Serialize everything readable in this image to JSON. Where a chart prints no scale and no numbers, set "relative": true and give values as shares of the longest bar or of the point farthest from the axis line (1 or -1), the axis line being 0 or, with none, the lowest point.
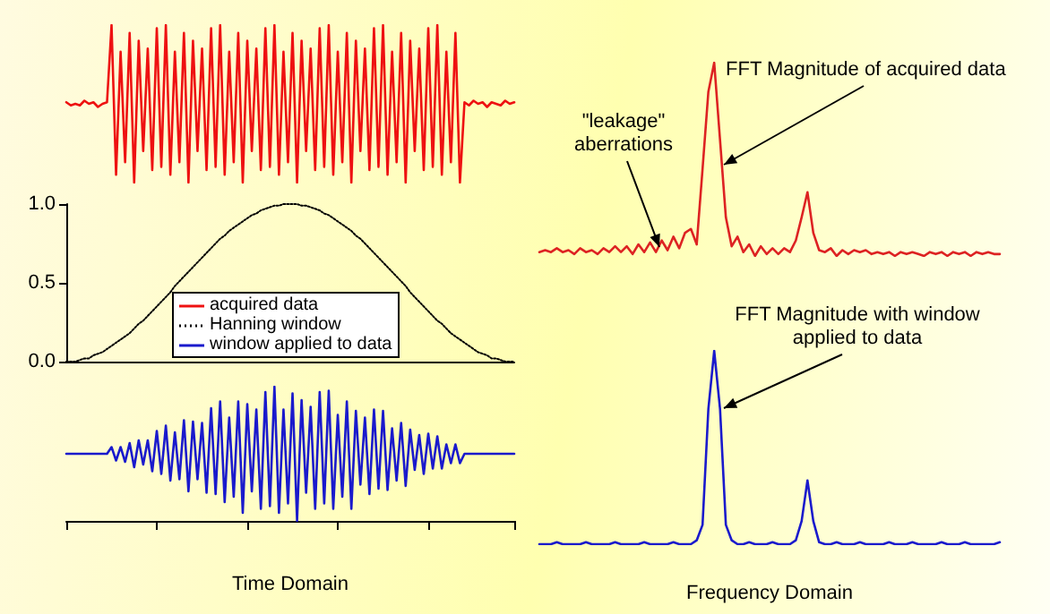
{
  "chart_data": [
    {
      "type": "line",
      "marker": "none",
      "relative": true,
      "tick_labels": false,
      "categories": [
        null,
        null,
        null,
        null,
        null,
        null,
        null,
        null,
        null,
        null,
        null,
        null,
        null,
        null,
        null,
        null,
        null,
        null,
        null,
        null,
        null,
        null,
        null,
        null,
        null,
        null,
        null,
        null,
        null,
        null,
        null,
        null,
        null,
        null,
        null,
        null,
        null,
        null,
        null,
        null,
        null,
        null,
        null,
        null,
        null,
        null,
        null,
        null,
        null,
        null,
        null,
        null,
        null,
        null,
        null,
        null,
        null,
        null,
        null,
        null,
        null,
        null,
        null,
        null,
        null,
        null,
        null,
        null,
        null,
        null,
        null,
        null,
        null,
        null,
        null,
        null,
        null,
        null,
        null,
        null,
        null,
        null,
        null,
        null,
        null,
        null,
        null,
        null,
        null,
        null,
        null,
        null,
        null,
        null,
        null,
        null,
        null,
        null,
        null,
        null
      ],
      "series": [
        {
          "name": "acquired data",
          "color": "#ee1111",
          "values": [
            0.51,
            0.49,
            0.5,
            0.49,
            0.52,
            0.5,
            0.51,
            0.48,
            0.5,
            0.51,
            1,
            0.05,
            0.83,
            0.13,
            0.95,
            0,
            0.9,
            0.2,
            0.85,
            0.08,
            0.98,
            0.1,
            1,
            0.05,
            0.83,
            0.13,
            0.95,
            0,
            0.9,
            0.2,
            0.85,
            0.08,
            0.98,
            0.1,
            1,
            0.05,
            0.83,
            0.13,
            0.95,
            0,
            0.9,
            0.2,
            0.85,
            0.08,
            0.98,
            0.1,
            1,
            0.05,
            0.83,
            0.13,
            0.95,
            0,
            0.9,
            0.2,
            0.85,
            0.08,
            0.98,
            0.1,
            1,
            0.05,
            0.83,
            0.13,
            0.95,
            0,
            0.9,
            0.2,
            0.85,
            0.08,
            0.98,
            0.1,
            1,
            0.05,
            0.83,
            0.13,
            0.95,
            0,
            0.9,
            0.2,
            0.85,
            0.08,
            0.98,
            0.1,
            1,
            0.05,
            0.83,
            0.13,
            0.95,
            0,
            0.51,
            0.49,
            0.52,
            0.5,
            0.51,
            0.48,
            0.51,
            0.5,
            0.49,
            0.52,
            0.5,
            0.51
          ]
        }
      ]
    },
    {
      "type": "line",
      "marker": "none",
      "tick_labels": "y",
      "legend": "bottom",
      "ylim": [
        0,
        1
      ],
      "yticks": [
        {
          "value": 0,
          "label": "0.0"
        },
        {
          "value": 0.5,
          "label": "0.5"
        },
        {
          "value": 1,
          "label": "1.0"
        }
      ],
      "categories": [
        null,
        null,
        null,
        null,
        null,
        null,
        null,
        null,
        null,
        null,
        null,
        null,
        null,
        null,
        null,
        null,
        null,
        null,
        null,
        null,
        null,
        null,
        null,
        null,
        null,
        null,
        null,
        null,
        null,
        null,
        null,
        null,
        null,
        null,
        null,
        null,
        null,
        null,
        null,
        null,
        null,
        null,
        null,
        null,
        null,
        null,
        null,
        null,
        null,
        null,
        null,
        null,
        null,
        null,
        null,
        null,
        null,
        null,
        null,
        null,
        null,
        null,
        null,
        null,
        null,
        null,
        null,
        null,
        null,
        null,
        null,
        null,
        null,
        null,
        null,
        null,
        null,
        null,
        null,
        null,
        null,
        null,
        null,
        null,
        null,
        null,
        null,
        null,
        null,
        null,
        null,
        null,
        null,
        null,
        null,
        null,
        null,
        null,
        null,
        null
      ],
      "series": [
        {
          "name": "Hanning window",
          "color": "#000000",
          "line_style": "dotted",
          "values": [
            0,
            0,
            0,
            0.01,
            0.02,
            0.02,
            0.04,
            0.05,
            0.06,
            0.08,
            0.1,
            0.12,
            0.14,
            0.16,
            0.18,
            0.21,
            0.24,
            0.26,
            0.29,
            0.32,
            0.35,
            0.38,
            0.41,
            0.44,
            0.48,
            0.51,
            0.54,
            0.57,
            0.6,
            0.63,
            0.66,
            0.69,
            0.72,
            0.75,
            0.78,
            0.8,
            0.83,
            0.85,
            0.87,
            0.89,
            0.91,
            0.93,
            0.94,
            0.96,
            0.97,
            0.98,
            0.99,
            0.99,
            1,
            1,
            1,
            1,
            0.99,
            0.99,
            0.98,
            0.97,
            0.96,
            0.94,
            0.93,
            0.91,
            0.89,
            0.87,
            0.85,
            0.83,
            0.8,
            0.78,
            0.75,
            0.72,
            0.69,
            0.66,
            0.63,
            0.6,
            0.57,
            0.54,
            0.51,
            0.48,
            0.44,
            0.41,
            0.38,
            0.35,
            0.32,
            0.29,
            0.26,
            0.24,
            0.21,
            0.18,
            0.16,
            0.14,
            0.12,
            0.1,
            0.08,
            0.06,
            0.05,
            0.04,
            0.02,
            0.02,
            0.01,
            0,
            0,
            0
          ]
        }
      ]
    },
    {
      "type": "line",
      "marker": "none",
      "relative": true,
      "tick_labels": false,
      "xlabel": "Time Domain",
      "categories": [
        null,
        null,
        null,
        null,
        null,
        null,
        null,
        null,
        null,
        null,
        null,
        null,
        null,
        null,
        null,
        null,
        null,
        null,
        null,
        null,
        null,
        null,
        null,
        null,
        null,
        null,
        null,
        null,
        null,
        null,
        null,
        null,
        null,
        null,
        null,
        null,
        null,
        null,
        null,
        null,
        null,
        null,
        null,
        null,
        null,
        null,
        null,
        null,
        null,
        null,
        null,
        null,
        null,
        null,
        null,
        null,
        null,
        null,
        null,
        null,
        null,
        null,
        null,
        null,
        null,
        null,
        null,
        null,
        null,
        null,
        null,
        null,
        null,
        null,
        null,
        null,
        null,
        null,
        null,
        null,
        null,
        null,
        null,
        null,
        null,
        null,
        null,
        null,
        null,
        null,
        null,
        null,
        null,
        null,
        null,
        null,
        null,
        null,
        null,
        null
      ],
      "series": [
        {
          "name": "window applied to data",
          "color": "#1a1acc",
          "values": [
            0.5,
            0.5,
            0.5,
            0.5,
            0.5,
            0.5,
            0.5,
            0.5,
            0.5,
            0.5,
            0.55,
            0.45,
            0.55,
            0.44,
            0.58,
            0.4,
            0.6,
            0.42,
            0.6,
            0.37,
            0.67,
            0.35,
            0.71,
            0.3,
            0.66,
            0.31,
            0.75,
            0.22,
            0.74,
            0.31,
            0.73,
            0.21,
            0.84,
            0.2,
            0.89,
            0.14,
            0.77,
            0.18,
            0.89,
            0.06,
            0.87,
            0.22,
            0.83,
            0.09,
            0.96,
            0.11,
            1,
            0.06,
            0.83,
            0.13,
            0.95,
            0,
            0.9,
            0.21,
            0.85,
            0.09,
            0.96,
            0.13,
            0.97,
            0.09,
            0.79,
            0.18,
            0.89,
            0.09,
            0.82,
            0.27,
            0.77,
            0.2,
            0.83,
            0.24,
            0.82,
            0.23,
            0.69,
            0.3,
            0.73,
            0.26,
            0.68,
            0.38,
            0.64,
            0.35,
            0.65,
            0.39,
            0.63,
            0.39,
            0.57,
            0.43,
            0.57,
            0.43,
            0.5,
            0.5,
            0.5,
            0.5,
            0.5,
            0.5,
            0.5,
            0.5,
            0.5,
            0.5,
            0.5,
            0.5
          ]
        }
      ]
    },
    {
      "type": "line",
      "marker": "none",
      "relative": true,
      "tick_labels": false,
      "annotations": [
        "\"leakage\" aberrations",
        "FFT Magnitude of acquired data"
      ],
      "categories": [
        null,
        null,
        null,
        null,
        null,
        null,
        null,
        null,
        null,
        null,
        null,
        null,
        null,
        null,
        null,
        null,
        null,
        null,
        null,
        null,
        null,
        null,
        null,
        null,
        null,
        null,
        null,
        null,
        null,
        null,
        null,
        null,
        null,
        null,
        null,
        null,
        null,
        null,
        null,
        null,
        null,
        null,
        null,
        null,
        null,
        null,
        null,
        null,
        null,
        null,
        null,
        null,
        null,
        null,
        null,
        null,
        null,
        null,
        null,
        null,
        null,
        null,
        null,
        null,
        null,
        null,
        null,
        null,
        null,
        null,
        null,
        null,
        null,
        null,
        null,
        null,
        null,
        null,
        null,
        null
      ],
      "series": [
        {
          "color": "#dd2222",
          "values": [
            0.02,
            0.03,
            0.02,
            0.04,
            0.02,
            0.03,
            0.01,
            0.04,
            0.02,
            0.03,
            0.01,
            0.04,
            0.02,
            0.05,
            0.02,
            0.05,
            0.01,
            0.06,
            0.02,
            0.07,
            0.02,
            0.08,
            0.03,
            0.1,
            0.04,
            0.12,
            0.14,
            0.06,
            0.45,
            0.85,
            1,
            0.6,
            0.2,
            0.05,
            0.1,
            0.02,
            0.06,
            0,
            0.05,
            0.01,
            0.04,
            0.01,
            0.04,
            0.02,
            0.08,
            0.2,
            0.33,
            0.12,
            0.03,
            0.02,
            0.04,
            0,
            0.03,
            0.01,
            0.03,
            0.02,
            0.03,
            0.01,
            0.02,
            0.01,
            0.02,
            0,
            0.02,
            0.01,
            0.02,
            0.01,
            0,
            0.02,
            0.01,
            0.02,
            0,
            0.02,
            0.01,
            0.02,
            0,
            0.02,
            0.01,
            0.02,
            0.01,
            0.01
          ]
        }
      ]
    },
    {
      "type": "line",
      "marker": "none",
      "relative": true,
      "tick_labels": false,
      "xlabel": "Frequency Domain",
      "annotations": [
        "FFT Magnitude with window applied to data"
      ],
      "categories": [
        null,
        null,
        null,
        null,
        null,
        null,
        null,
        null,
        null,
        null,
        null,
        null,
        null,
        null,
        null,
        null,
        null,
        null,
        null,
        null,
        null,
        null,
        null,
        null,
        null,
        null,
        null,
        null,
        null,
        null,
        null,
        null,
        null,
        null,
        null,
        null,
        null,
        null,
        null,
        null,
        null,
        null,
        null,
        null,
        null,
        null,
        null,
        null,
        null,
        null,
        null,
        null,
        null,
        null,
        null,
        null,
        null,
        null,
        null,
        null,
        null,
        null,
        null,
        null,
        null,
        null,
        null,
        null,
        null,
        null,
        null,
        null,
        null,
        null,
        null,
        null,
        null,
        null,
        null,
        null
      ],
      "series": [
        {
          "color": "#1a1acc",
          "values": [
            0,
            0,
            0,
            0.01,
            0,
            0,
            0,
            0,
            0.01,
            0,
            0,
            0,
            0,
            0.01,
            0,
            0,
            0,
            0,
            0.01,
            0,
            0,
            0,
            0,
            0.01,
            0,
            0,
            0,
            0.02,
            0.1,
            0.7,
            1,
            0.7,
            0.1,
            0.02,
            0,
            0,
            0.01,
            0,
            0,
            0,
            0.01,
            0,
            0,
            0,
            0.02,
            0.12,
            0.33,
            0.12,
            0.01,
            0,
            0,
            0.01,
            0,
            0,
            0,
            0.01,
            0,
            0,
            0,
            0,
            0.01,
            0,
            0,
            0,
            0.01,
            0,
            0,
            0,
            0,
            0.01,
            0,
            0,
            0,
            0.01,
            0,
            0,
            0,
            0,
            0,
            0.01
          ]
        }
      ]
    }
  ]
}
